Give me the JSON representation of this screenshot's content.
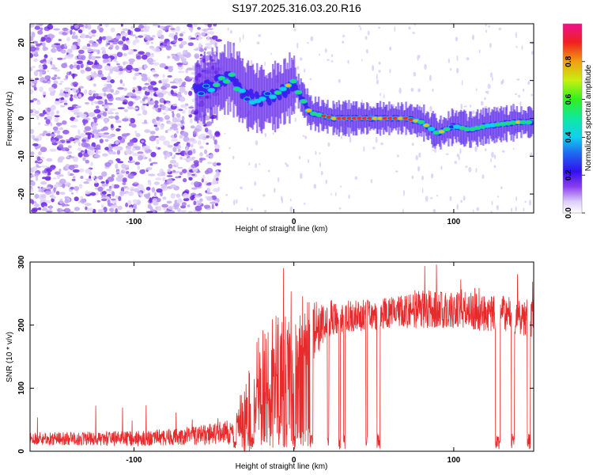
{
  "title": "S197.2025.316.03.20.R16",
  "colors": {
    "snr_line": "#e52b2b",
    "scatter_dot": "#c8b4f0",
    "ridge_core": "#e53030",
    "ridge_mid": "#22dd66",
    "ridge_edge": "#3a1ef0"
  },
  "chart_data": [
    {
      "type": "heatmap",
      "name": "spectrogram",
      "xlabel": "Height of straight line (km)",
      "ylabel": "Frequency (Hz)",
      "xlim": [
        -165,
        150
      ],
      "ylim": [
        -25,
        25
      ],
      "xticks": [
        -100,
        0,
        100
      ],
      "xtick_labels": [
        "-100",
        "0",
        "100"
      ],
      "yticks": [
        -20,
        -10,
        0,
        10,
        20
      ],
      "ytick_labels": [
        "-20",
        "-10",
        "0",
        "10",
        "20"
      ],
      "ridge": {
        "x": [
          -60,
          -50,
          -40,
          -30,
          -20,
          -10,
          0,
          10,
          25,
          40,
          55,
          70,
          80,
          90,
          100,
          110,
          120,
          130,
          140,
          148
        ],
        "freq": [
          7,
          9,
          11,
          6,
          5,
          6,
          9,
          1.5,
          0,
          0,
          0,
          0,
          -1,
          -4,
          -2,
          -3,
          -2,
          -1.5,
          -1,
          -1
        ],
        "amplitude": [
          0.35,
          0.45,
          0.5,
          0.45,
          0.45,
          0.5,
          0.6,
          0.6,
          0.85,
          0.8,
          0.75,
          0.85,
          0.6,
          0.55,
          0.5,
          0.55,
          0.55,
          0.6,
          0.7,
          0.65
        ]
      },
      "colorbar": {
        "label": "Normalized spectral amplitude",
        "range": [
          0,
          1
        ],
        "ticks": [
          0.0,
          0.2,
          0.4,
          0.6,
          0.8
        ],
        "tick_labels": [
          "0.0",
          "0.2",
          "0.4",
          "0.6",
          "0.8"
        ]
      }
    },
    {
      "type": "line",
      "name": "snr",
      "xlabel": "Height of straight line (km)",
      "ylabel": "SNR (10 * v/v)",
      "xlim": [
        -165,
        150
      ],
      "ylim": [
        0,
        300
      ],
      "xticks": [
        -100,
        0,
        100
      ],
      "xtick_labels": [
        "-100",
        "0",
        "100"
      ],
      "yticks": [
        0,
        100,
        200,
        300
      ],
      "ytick_labels": [
        "0",
        "100",
        "200",
        "300"
      ],
      "envelope": {
        "x": [
          -165,
          -100,
          -60,
          -40,
          -30,
          -20,
          -10,
          0,
          10,
          20,
          40,
          60,
          80,
          100,
          120,
          150
        ],
        "median": [
          20,
          20,
          25,
          30,
          60,
          100,
          140,
          160,
          180,
          210,
          215,
          220,
          225,
          225,
          220,
          210
        ],
        "spread": [
          10,
          12,
          15,
          20,
          80,
          100,
          110,
          100,
          60,
          30,
          25,
          25,
          30,
          30,
          30,
          30
        ]
      },
      "dropouts": [
        [
          -38,
          -36
        ],
        [
          -27,
          -25
        ],
        [
          0,
          1
        ],
        [
          10,
          12
        ],
        [
          21,
          22
        ],
        [
          28,
          29
        ],
        [
          31,
          32
        ],
        [
          45,
          46
        ],
        [
          52,
          54
        ],
        [
          126,
          129
        ],
        [
          136,
          138
        ],
        [
          146,
          148
        ]
      ]
    }
  ]
}
